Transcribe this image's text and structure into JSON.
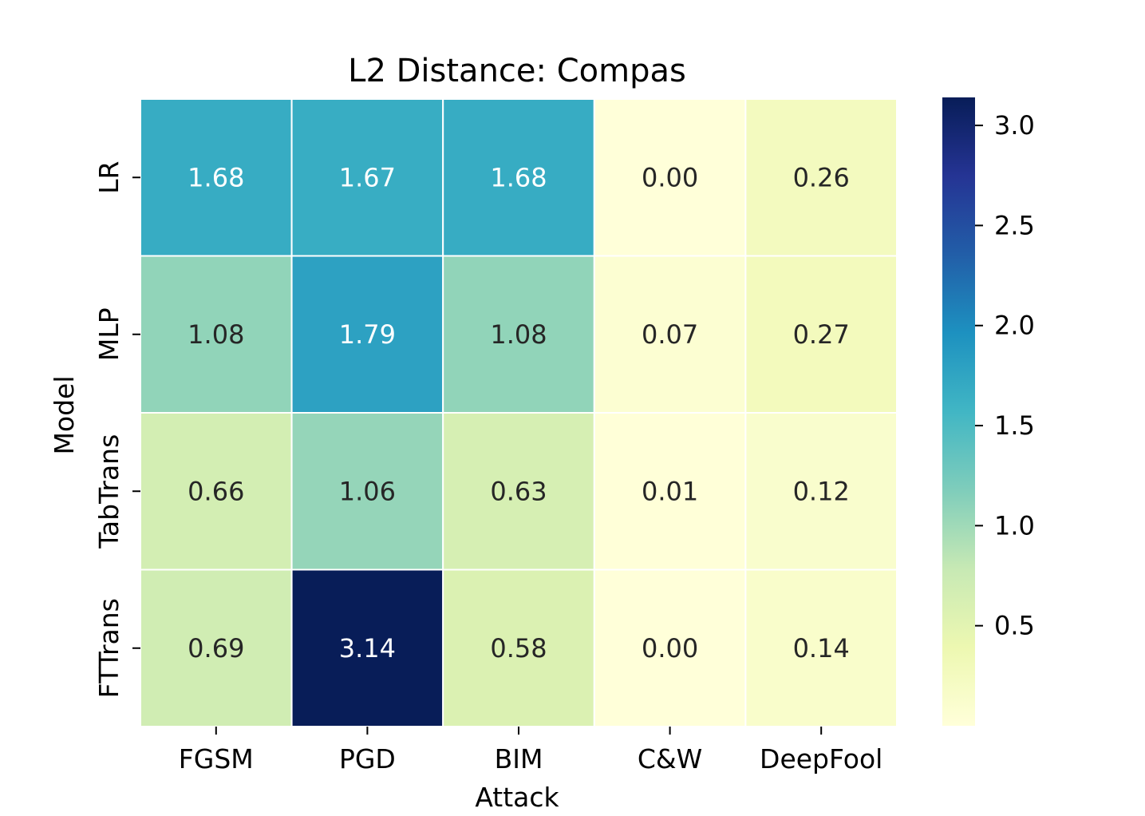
{
  "chart_data": {
    "type": "heatmap",
    "title": "L2 Distance: Compas",
    "xlabel": "Attack",
    "ylabel": "Model",
    "x_categories": [
      "FGSM",
      "PGD",
      "BIM",
      "C&W",
      "DeepFool"
    ],
    "y_categories": [
      "LR",
      "MLP",
      "TabTrans",
      "FTTrans"
    ],
    "values": [
      [
        1.68,
        1.67,
        1.68,
        0.0,
        0.26
      ],
      [
        1.08,
        1.79,
        1.08,
        0.07,
        0.27
      ],
      [
        0.66,
        1.06,
        0.63,
        0.01,
        0.12
      ],
      [
        0.69,
        3.14,
        0.58,
        0.0,
        0.14
      ]
    ],
    "value_labels": [
      [
        "1.68",
        "1.67",
        "1.68",
        "0.00",
        "0.26"
      ],
      [
        "1.08",
        "1.79",
        "1.08",
        "0.07",
        "0.27"
      ],
      [
        "0.66",
        "1.06",
        "0.63",
        "0.01",
        "0.12"
      ],
      [
        "0.69",
        "3.14",
        "0.58",
        "0.00",
        "0.14"
      ]
    ],
    "colormap": "YlGnBu",
    "colormap_stops": [
      "#ffffd9",
      "#edf8b1",
      "#c7e9b4",
      "#7fcdbb",
      "#41b6c4",
      "#1d91c0",
      "#225ea8",
      "#253494",
      "#081d58"
    ],
    "colorbar": {
      "range": [
        0.0,
        3.14
      ],
      "ticks": [
        0.5,
        1.0,
        1.5,
        2.0,
        2.5,
        3.0
      ],
      "tick_labels": [
        "0.5",
        "1.0",
        "1.5",
        "2.0",
        "2.5",
        "3.0"
      ]
    }
  }
}
